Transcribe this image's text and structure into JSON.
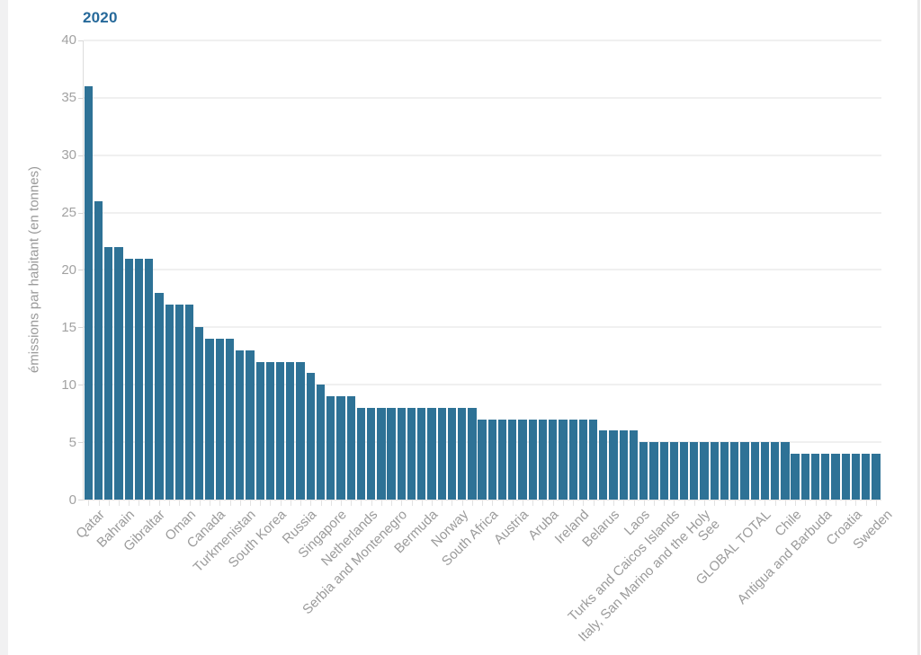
{
  "page": {
    "left_gutter_color": "#f1f1f2",
    "right_border_color": "#e9e9e9",
    "background": "#ffffff"
  },
  "chart_data": {
    "type": "bar",
    "title": "2020",
    "title_color": "#26699a",
    "xlabel": "",
    "ylabel": "émissions par habitant (en tonnes)",
    "ylim": [
      0,
      40
    ],
    "yticks": [
      0,
      5,
      10,
      15,
      20,
      25,
      30,
      35,
      40
    ],
    "grid": "horizontal",
    "gridline_color": "#f0f0f0",
    "legend": "none",
    "bar_color": "#2e7296",
    "n_bars": 79,
    "values": [
      36,
      26,
      22,
      22,
      21,
      21,
      21,
      18,
      17,
      17,
      17,
      15,
      14,
      14,
      14,
      13,
      13,
      12,
      12,
      12,
      12,
      12,
      11,
      10,
      9,
      9,
      9,
      8,
      8,
      8,
      8,
      8,
      8,
      8,
      8,
      8,
      8,
      8,
      8,
      7,
      7,
      7,
      7,
      7,
      7,
      7,
      7,
      7,
      7,
      7,
      7,
      6,
      6,
      6,
      6,
      5,
      5,
      5,
      5,
      5,
      5,
      5,
      5,
      5,
      5,
      5,
      5,
      5,
      5,
      5,
      4,
      4,
      4,
      4,
      4,
      4,
      4,
      4,
      4
    ],
    "labels": [
      {
        "bar": 1,
        "text": "Qatar"
      },
      {
        "bar": 4,
        "text": "Bahrain"
      },
      {
        "bar": 7,
        "text": "Gibraltar"
      },
      {
        "bar": 10,
        "text": "Oman"
      },
      {
        "bar": 13,
        "text": "Canada"
      },
      {
        "bar": 16,
        "text": "Turkmenistan"
      },
      {
        "bar": 19,
        "text": "South Korea"
      },
      {
        "bar": 22,
        "text": "Russia"
      },
      {
        "bar": 25,
        "text": "Singapore"
      },
      {
        "bar": 28,
        "text": "Netherlands"
      },
      {
        "bar": 31,
        "text": "Serbia and Montenegro"
      },
      {
        "bar": 34,
        "text": "Bermuda"
      },
      {
        "bar": 37,
        "text": "Norway"
      },
      {
        "bar": 40,
        "text": "South Africa"
      },
      {
        "bar": 43,
        "text": "Austria"
      },
      {
        "bar": 46,
        "text": "Aruba"
      },
      {
        "bar": 49,
        "text": "Ireland"
      },
      {
        "bar": 52,
        "text": "Belarus"
      },
      {
        "bar": 55,
        "text": "Laos"
      },
      {
        "bar": 58,
        "text": "Turks and Caicos Islands"
      },
      {
        "bar": 61,
        "text": "Italy, San Marino and the Holy See",
        "lines": [
          "Italy, San Marino and the Holy",
          "See"
        ]
      },
      {
        "bar": 67,
        "text": "GLOBAL TOTAL"
      },
      {
        "bar": 70,
        "text": "Chile"
      },
      {
        "bar": 73,
        "text": "Antigua and Barbuda"
      },
      {
        "bar": 76,
        "text": "Croatia"
      },
      {
        "bar": 79,
        "text": "Sweden"
      }
    ]
  }
}
